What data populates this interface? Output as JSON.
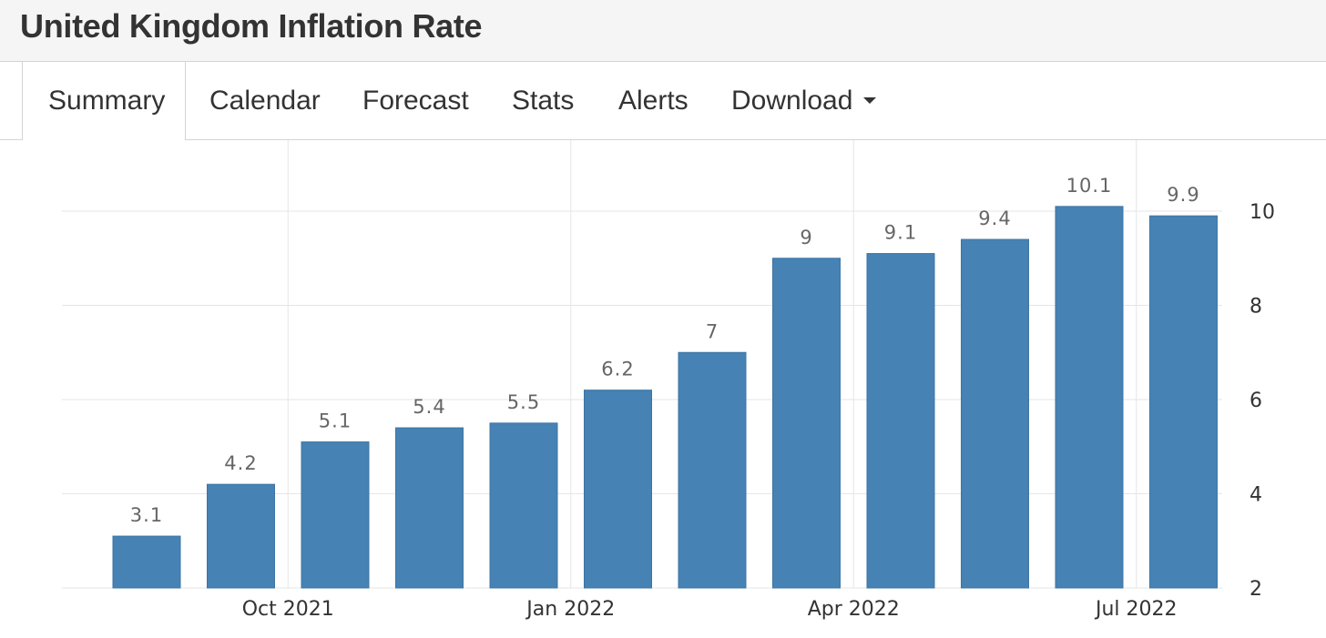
{
  "header": {
    "title": "United Kingdom Inflation Rate"
  },
  "tabs": [
    {
      "label": "Summary",
      "active": true
    },
    {
      "label": "Calendar"
    },
    {
      "label": "Forecast"
    },
    {
      "label": "Stats"
    },
    {
      "label": "Alerts"
    },
    {
      "label": "Download",
      "has_dropdown": true
    }
  ],
  "colors": {
    "bar": "#4682b4",
    "bar_stroke": "#3f74a3",
    "grid": "#e6e6e6",
    "label": "#666666",
    "axis_text": "#333333"
  },
  "chart_data": {
    "type": "bar",
    "title": "",
    "xlabel": "",
    "ylabel": "",
    "categories": [
      "2021-08",
      "2021-09",
      "2021-10",
      "2021-11",
      "2021-12",
      "2022-01",
      "2022-02",
      "2022-03",
      "2022-04",
      "2022-05",
      "2022-06",
      "2022-07"
    ],
    "values": [
      3.1,
      4.2,
      5.1,
      5.4,
      5.5,
      6.2,
      7,
      9,
      9.1,
      9.4,
      10.1,
      9.9
    ],
    "value_labels": [
      "3.1",
      "4.2",
      "5.1",
      "5.4",
      "5.5",
      "6.2",
      "7",
      "9",
      "9.1",
      "9.4",
      "10.1",
      "9.9"
    ],
    "x_ticks": [
      {
        "label": "Oct 2021",
        "between": [
          "2021-09",
          "2021-10"
        ]
      },
      {
        "label": "Jan 2022",
        "between": [
          "2021-12",
          "2022-01"
        ]
      },
      {
        "label": "Apr 2022",
        "between": [
          "2022-03",
          "2022-04"
        ]
      },
      {
        "label": "Jul 2022",
        "between": [
          "2022-06",
          "2022-07"
        ]
      }
    ],
    "y_ticks": [
      2,
      4,
      6,
      8,
      10
    ],
    "y_tick_labels": [
      "2",
      "4",
      "6",
      "8",
      "10"
    ],
    "ylim": [
      2,
      10.9
    ],
    "y_axis_side": "right",
    "grid": true
  }
}
